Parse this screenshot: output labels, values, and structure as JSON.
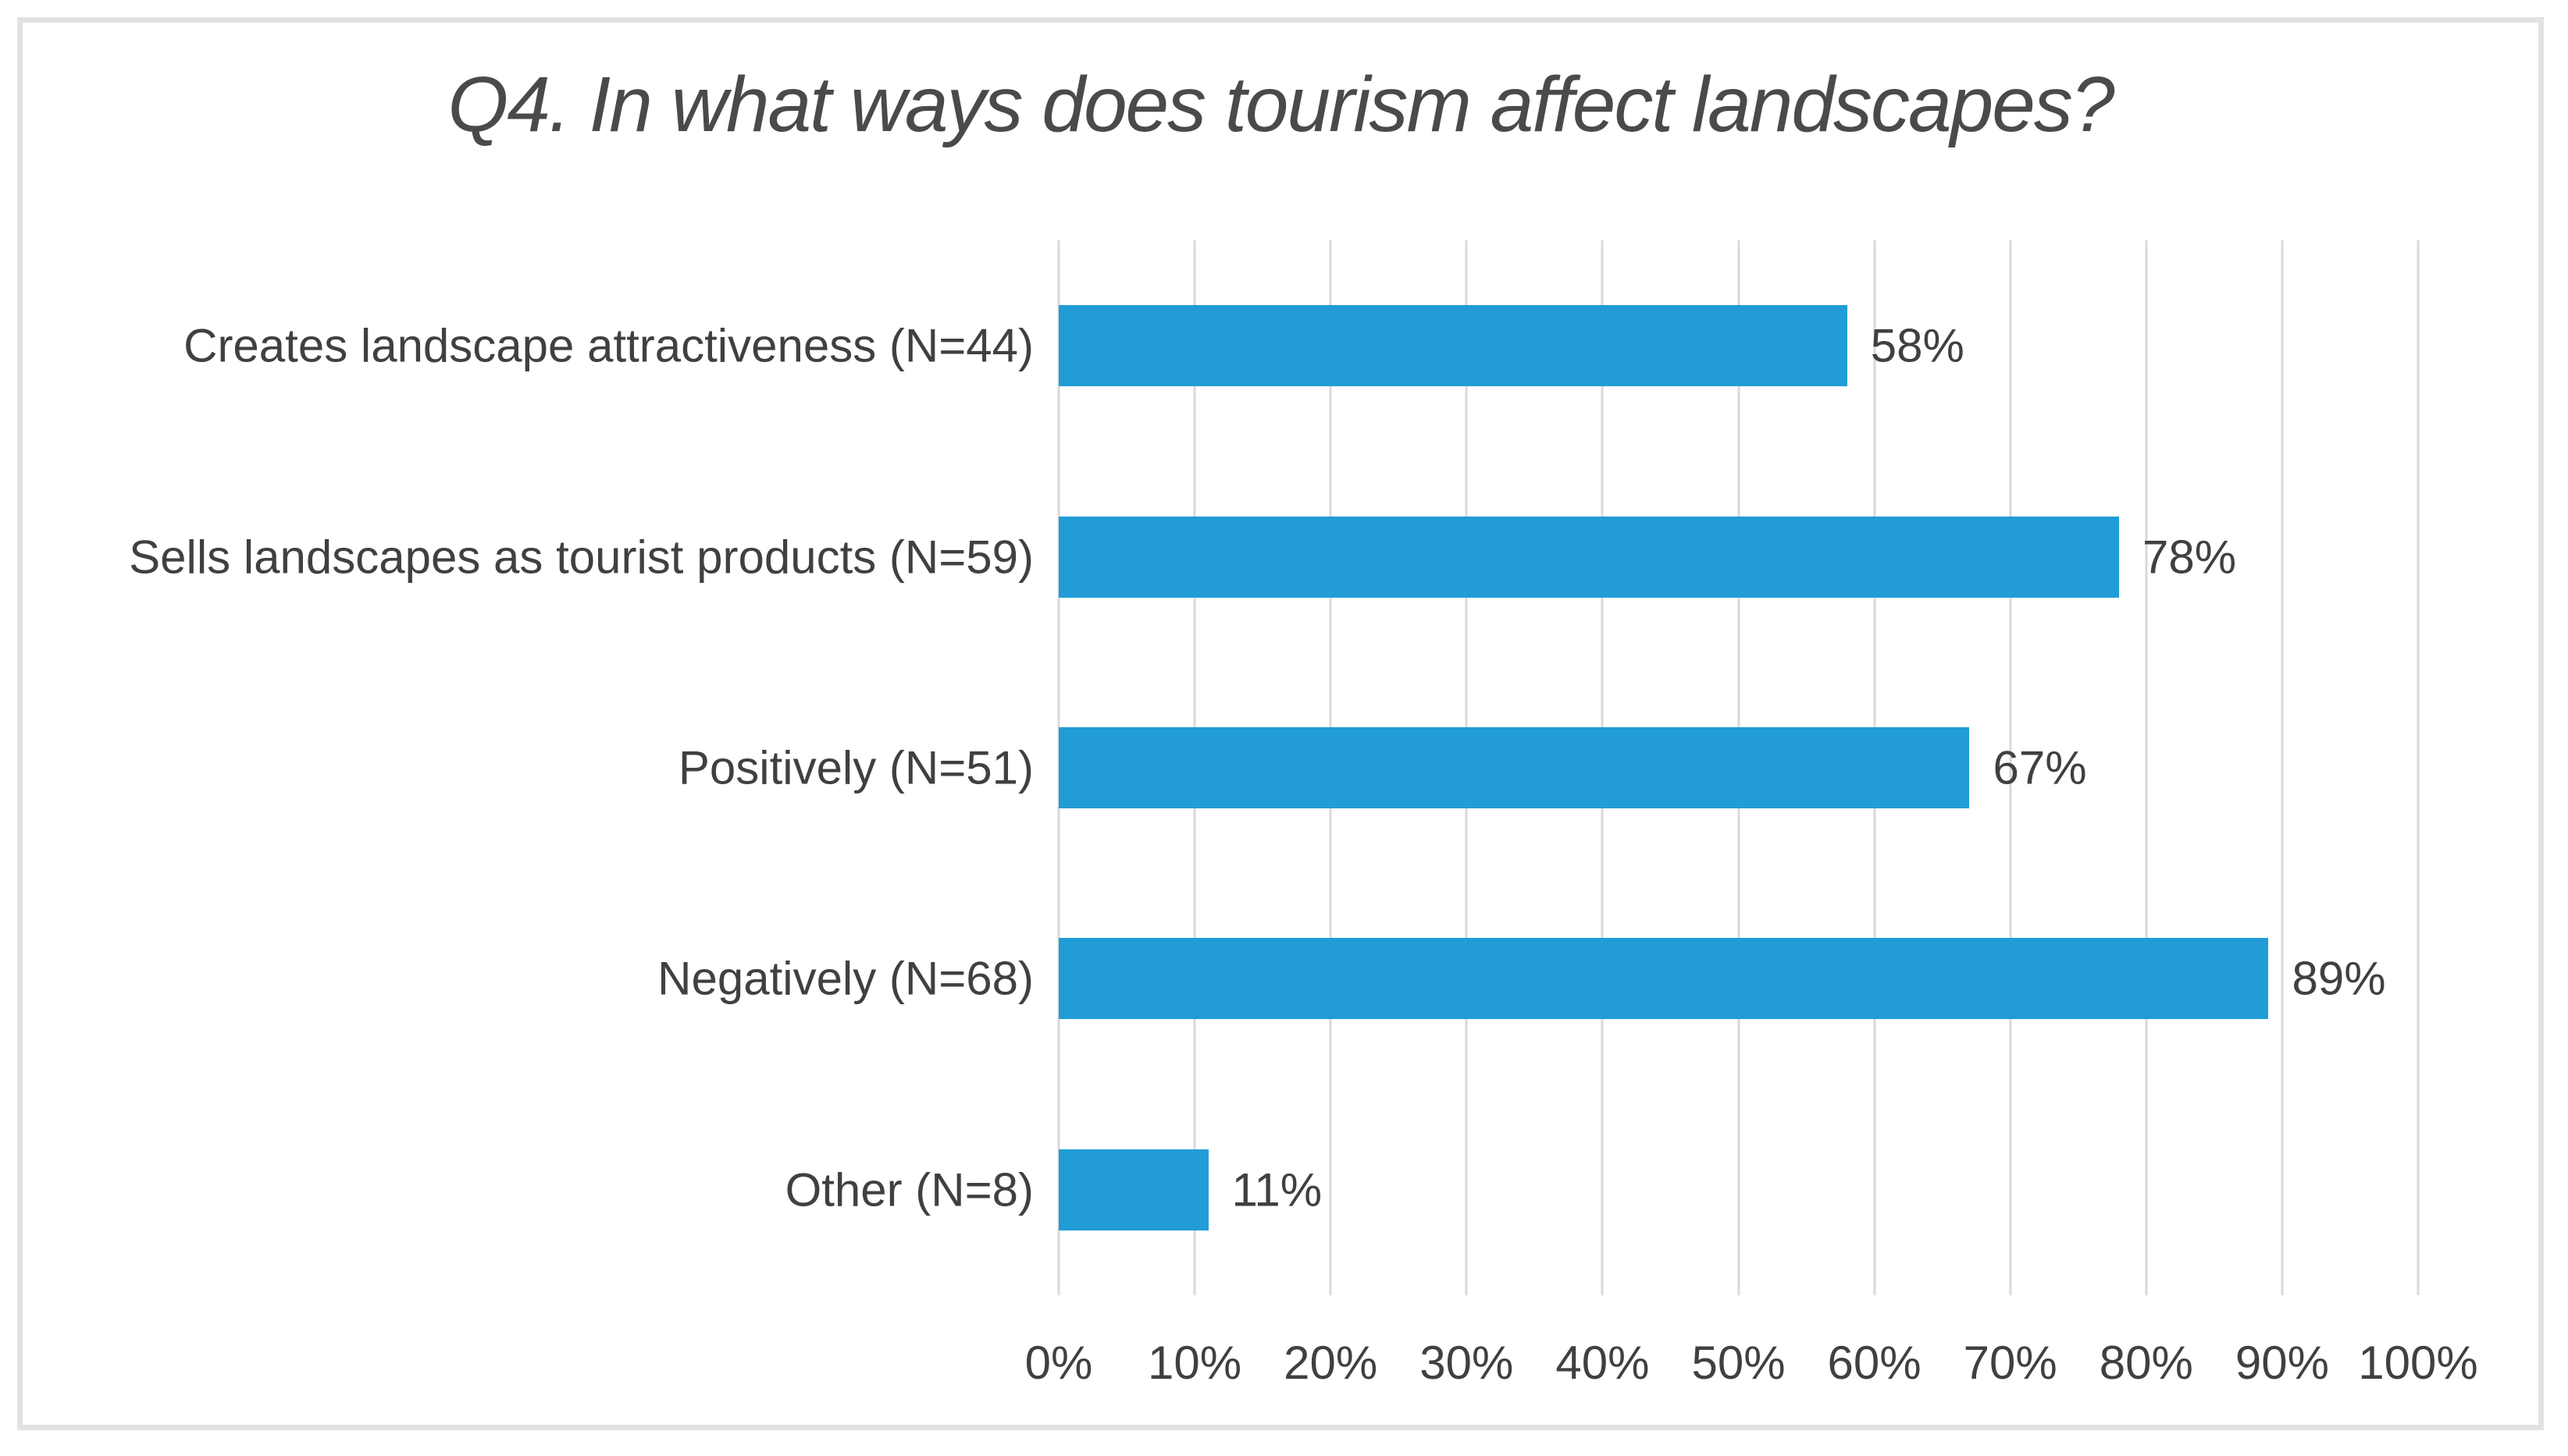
{
  "chart_data": {
    "type": "bar",
    "orientation": "horizontal",
    "title": "Q4. In what ways does tourism affect landscapes?",
    "categories": [
      "Creates landscape attractiveness (N=44)",
      "Sells landscapes as tourist products (N=59)",
      "Positively (N=51)",
      "Negatively (N=68)",
      "Other (N=8)"
    ],
    "values": [
      58,
      78,
      67,
      89,
      11
    ],
    "value_labels": [
      "58%",
      "78%",
      "67%",
      "89%",
      "11%"
    ],
    "xlim": [
      0,
      100
    ],
    "x_ticks": [
      "0%",
      "10%",
      "20%",
      "30%",
      "40%",
      "50%",
      "60%",
      "70%",
      "80%",
      "90%",
      "100%"
    ],
    "grid": "vertical-only",
    "legend": "none",
    "bar_color": "#219cd7",
    "gridline_color": "#d9d9d9",
    "text_color": "#404040",
    "title_color": "#4a4a4a",
    "frame_border_color": "#e2e2e2"
  }
}
